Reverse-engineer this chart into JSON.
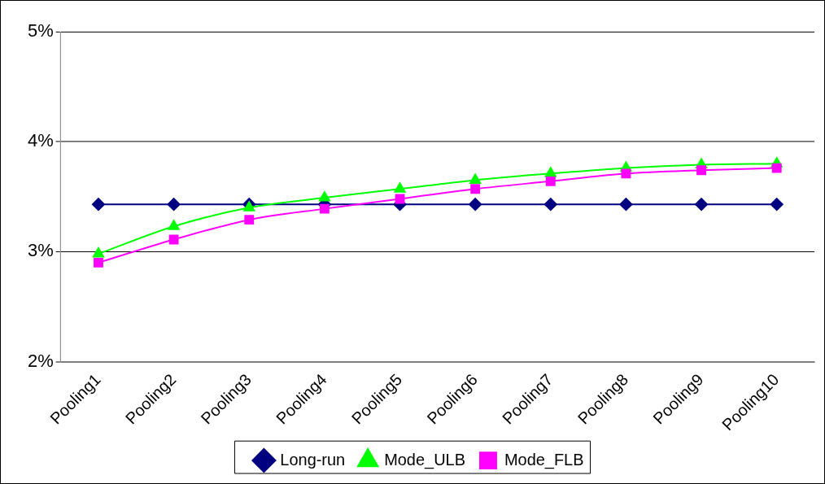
{
  "chart_data": {
    "type": "line",
    "categories": [
      "Pooling1",
      "Pooling2",
      "Pooling3",
      "Pooling4",
      "Pooling5",
      "Pooling6",
      "Pooling7",
      "Pooling8",
      "Pooling9",
      "Pooling10"
    ],
    "series": [
      {
        "name": "Long-run",
        "color": "#000080",
        "marker": "diamond",
        "values": [
          3.43,
          3.43,
          3.43,
          3.43,
          3.43,
          3.43,
          3.43,
          3.43,
          3.43,
          3.43
        ]
      },
      {
        "name": "Mode_ULB",
        "color": "#00ff00",
        "marker": "triangle",
        "values": [
          2.98,
          3.23,
          3.4,
          3.49,
          3.57,
          3.65,
          3.71,
          3.76,
          3.79,
          3.8
        ]
      },
      {
        "name": "Mode_FLB",
        "color": "#ff00ff",
        "marker": "square",
        "values": [
          2.9,
          3.11,
          3.29,
          3.39,
          3.48,
          3.57,
          3.64,
          3.71,
          3.74,
          3.76
        ]
      }
    ],
    "ylim": [
      2,
      5
    ],
    "yticks": [
      {
        "value": 2,
        "label": "2%"
      },
      {
        "value": 3,
        "label": "3%"
      },
      {
        "value": 4,
        "label": "4%"
      },
      {
        "value": 5,
        "label": "5%"
      }
    ],
    "grid": "y",
    "legend": "bottom",
    "line_style": "solid"
  }
}
